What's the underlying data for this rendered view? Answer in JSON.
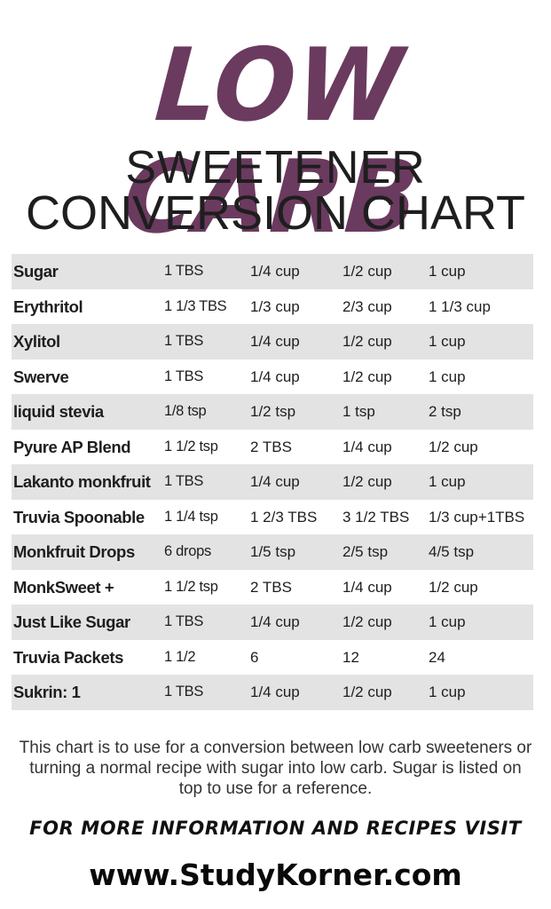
{
  "colors": {
    "title": "#6b3a5f",
    "text": "#1e1e1e",
    "row_shade": "#e3e3e3"
  },
  "header": {
    "title": "LOW CARB",
    "subtitle_line1": "SWEETENER",
    "subtitle_line2": "CONVERSION CHART"
  },
  "table": {
    "rows": [
      {
        "name": "Sugar",
        "c1": "1 TBS",
        "c2": "1/4 cup",
        "c3": "1/2 cup",
        "c4": "1  cup"
      },
      {
        "name": "Erythritol",
        "c1": "1 1/3 TBS",
        "c2": "1/3 cup",
        "c3": "2/3 cup",
        "c4": "1 1/3 cup"
      },
      {
        "name": "Xylitol",
        "c1": "1 TBS",
        "c2": "1/4 cup",
        "c3": "1/2 cup",
        "c4": "1 cup"
      },
      {
        "name": "Swerve",
        "c1": "1 TBS",
        "c2": "1/4 cup",
        "c3": "1/2 cup",
        "c4": "1 cup"
      },
      {
        "name": "liquid stevia",
        "c1": "1/8 tsp",
        "c2": "1/2 tsp",
        "c3": "1  tsp",
        "c4": "2  tsp"
      },
      {
        "name": "Pyure  AP Blend",
        "c1": "1 1/2 tsp",
        "c2": "2 TBS",
        "c3": "1/4 cup",
        "c4": "1/2 cup"
      },
      {
        "name": "Lakanto monkfruit",
        "c1": "1 TBS",
        "c2": "1/4 cup",
        "c3": "1/2 cup",
        "c4": "1 cup"
      },
      {
        "name": "Truvia Spoonable",
        "c1": "1 1/4 tsp",
        "c2": "1 2/3 TBS",
        "c3": "3 1/2 TBS",
        "c4": "1/3 cup+1TBS"
      },
      {
        "name": "Monkfruit Drops",
        "c1": "6 drops",
        "c2": "1/5 tsp",
        "c3": "2/5 tsp",
        "c4": "4/5 tsp"
      },
      {
        "name": "MonkSweet +",
        "c1": "1 1/2 tsp",
        "c2": "2 TBS",
        "c3": "1/4 cup",
        "c4": "1/2 cup"
      },
      {
        "name": "Just Like Sugar",
        "c1": "1 TBS",
        "c2": "1/4 cup",
        "c3": "1/2 cup",
        "c4": "1 cup"
      },
      {
        "name": "Truvia Packets",
        "c1": "1 1/2",
        "c2": "6",
        "c3": "12",
        "c4": "24"
      },
      {
        "name": "Sukrin: 1",
        "c1": "1 TBS",
        "c2": "1/4 cup",
        "c3": "1/2 cup",
        "c4": "1 cup"
      }
    ]
  },
  "footer": {
    "note": "This chart is to use for a conversion between low carb sweeteners or turning a normal recipe with sugar into low carb. Sugar is listed on top to use for a reference.",
    "cta": "FOR MORE INFORMATION AND RECIPES VISIT",
    "url": "www.StudyKorner.com"
  }
}
